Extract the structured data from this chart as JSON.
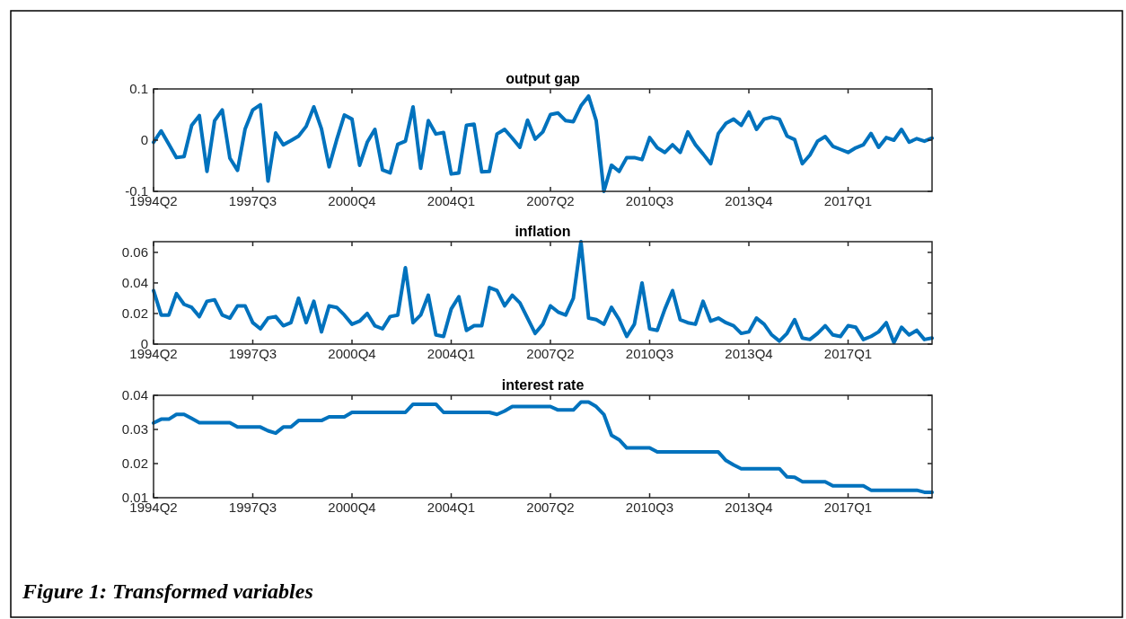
{
  "chart_data": [
    {
      "type": "line",
      "title": "output gap",
      "categories": [
        "1994Q2",
        null,
        null,
        null,
        null,
        null,
        null,
        null,
        null,
        null,
        null,
        null,
        null,
        "1997Q3",
        null,
        null,
        null,
        null,
        null,
        null,
        null,
        null,
        null,
        null,
        null,
        null,
        "2000Q4",
        null,
        null,
        null,
        null,
        null,
        null,
        null,
        null,
        null,
        null,
        null,
        null,
        "2004Q1",
        null,
        null,
        null,
        null,
        null,
        null,
        null,
        null,
        null,
        null,
        null,
        null,
        "2007Q2",
        null,
        null,
        null,
        null,
        null,
        null,
        null,
        null,
        null,
        null,
        null,
        null,
        "2010Q3",
        null,
        null,
        null,
        null,
        null,
        null,
        null,
        null,
        null,
        null,
        null,
        null,
        "2013Q4",
        null,
        null,
        null,
        null,
        null,
        null,
        null,
        null,
        null,
        null,
        null,
        null,
        "2017Q1",
        null,
        null,
        null,
        null,
        null,
        null,
        null,
        null,
        null,
        null,
        null
      ],
      "ylim": [
        -0.1,
        0.1
      ],
      "yticks": [
        -0.1,
        0,
        0.1
      ],
      "grid": false,
      "line_style": "solid",
      "series": [
        {
          "color": "#0072bd",
          "values": [
            -0.004,
            0.018,
            -0.008,
            -0.034,
            -0.032,
            0.029,
            0.048,
            -0.061,
            0.038,
            0.059,
            -0.035,
            -0.059,
            0.022,
            0.059,
            0.069,
            -0.08,
            0.014,
            -0.009,
            -0.001,
            0.008,
            0.027,
            0.065,
            0.022,
            -0.052,
            0.001,
            0.049,
            0.041,
            -0.049,
            -0.004,
            0.021,
            -0.058,
            -0.064,
            -0.008,
            -0.002,
            0.065,
            -0.055,
            0.038,
            0.012,
            0.015,
            -0.066,
            -0.064,
            0.029,
            0.031,
            -0.062,
            -0.061,
            0.012,
            0.021,
            0.004,
            -0.014,
            0.039,
            0.002,
            0.016,
            0.05,
            0.053,
            0.038,
            0.036,
            0.067,
            0.086,
            0.038,
            -0.1,
            -0.049,
            -0.061,
            -0.034,
            -0.034,
            -0.038,
            0.005,
            -0.015,
            -0.024,
            -0.009,
            -0.024,
            0.016,
            -0.009,
            -0.027,
            -0.046,
            0.013,
            0.033,
            0.041,
            0.029,
            0.055,
            0.021,
            0.041,
            0.045,
            0.041,
            0.008,
            0.001,
            -0.046,
            -0.029,
            -0.002,
            0.007,
            -0.012,
            -0.018,
            -0.024,
            -0.015,
            -0.009,
            0.013,
            -0.014,
            0.005,
            0.0,
            0.021,
            -0.004,
            0.003,
            -0.002,
            0.004
          ]
        }
      ]
    },
    {
      "type": "line",
      "title": "inflation",
      "categories": [
        "1994Q2",
        null,
        null,
        null,
        null,
        null,
        null,
        null,
        null,
        null,
        null,
        null,
        null,
        "1997Q3",
        null,
        null,
        null,
        null,
        null,
        null,
        null,
        null,
        null,
        null,
        null,
        null,
        "2000Q4",
        null,
        null,
        null,
        null,
        null,
        null,
        null,
        null,
        null,
        null,
        null,
        null,
        "2004Q1",
        null,
        null,
        null,
        null,
        null,
        null,
        null,
        null,
        null,
        null,
        null,
        null,
        "2007Q2",
        null,
        null,
        null,
        null,
        null,
        null,
        null,
        null,
        null,
        null,
        null,
        null,
        "2010Q3",
        null,
        null,
        null,
        null,
        null,
        null,
        null,
        null,
        null,
        null,
        null,
        null,
        "2013Q4",
        null,
        null,
        null,
        null,
        null,
        null,
        null,
        null,
        null,
        null,
        null,
        null,
        "2017Q1",
        null,
        null,
        null,
        null,
        null,
        null,
        null,
        null,
        null,
        null,
        null
      ],
      "ylim": [
        0,
        0.067
      ],
      "yticks": [
        0,
        0.02,
        0.04,
        0.06
      ],
      "grid": false,
      "line_style": "solid",
      "series": [
        {
          "color": "#0072bd",
          "values": [
            0.035,
            0.019,
            0.019,
            0.033,
            0.026,
            0.024,
            0.018,
            0.028,
            0.029,
            0.019,
            0.017,
            0.025,
            0.025,
            0.014,
            0.01,
            0.017,
            0.018,
            0.012,
            0.014,
            0.03,
            0.014,
            0.028,
            0.008,
            0.025,
            0.024,
            0.019,
            0.013,
            0.015,
            0.02,
            0.012,
            0.01,
            0.018,
            0.019,
            0.05,
            0.014,
            0.019,
            0.032,
            0.006,
            0.005,
            0.023,
            0.031,
            0.009,
            0.012,
            0.012,
            0.037,
            0.035,
            0.025,
            0.032,
            0.027,
            0.017,
            0.007,
            0.013,
            0.025,
            0.021,
            0.019,
            0.03,
            0.067,
            0.017,
            0.016,
            0.013,
            0.024,
            0.016,
            0.005,
            0.013,
            0.04,
            0.01,
            0.009,
            0.023,
            0.035,
            0.016,
            0.014,
            0.013,
            0.028,
            0.015,
            0.017,
            0.014,
            0.012,
            0.007,
            0.008,
            0.017,
            0.013,
            0.006,
            0.002,
            0.007,
            0.016,
            0.004,
            0.003,
            0.007,
            0.012,
            0.006,
            0.005,
            0.012,
            0.011,
            0.003,
            0.005,
            0.008,
            0.014,
            0.001,
            0.011,
            0.006,
            0.009,
            0.003,
            0.004
          ]
        }
      ]
    },
    {
      "type": "line",
      "title": "interest rate",
      "categories": [
        "1994Q2",
        null,
        null,
        null,
        null,
        null,
        null,
        null,
        null,
        null,
        null,
        null,
        null,
        "1997Q3",
        null,
        null,
        null,
        null,
        null,
        null,
        null,
        null,
        null,
        null,
        null,
        null,
        "2000Q4",
        null,
        null,
        null,
        null,
        null,
        null,
        null,
        null,
        null,
        null,
        null,
        null,
        "2004Q1",
        null,
        null,
        null,
        null,
        null,
        null,
        null,
        null,
        null,
        null,
        null,
        null,
        "2007Q2",
        null,
        null,
        null,
        null,
        null,
        null,
        null,
        null,
        null,
        null,
        null,
        null,
        "2010Q3",
        null,
        null,
        null,
        null,
        null,
        null,
        null,
        null,
        null,
        null,
        null,
        null,
        "2013Q4",
        null,
        null,
        null,
        null,
        null,
        null,
        null,
        null,
        null,
        null,
        null,
        null,
        "2017Q1",
        null,
        null,
        null,
        null,
        null,
        null,
        null,
        null,
        null,
        null,
        null
      ],
      "ylim": [
        0.01,
        0.04
      ],
      "yticks": [
        0.01,
        0.02,
        0.03,
        0.04
      ],
      "grid": false,
      "line_style": "solid",
      "annotations": [
        "Figure 1: Transformed variables"
      ],
      "series": [
        {
          "color": "#0072bd",
          "values": [
            0.0319,
            0.033,
            0.033,
            0.0344,
            0.0344,
            0.0332,
            0.032,
            0.032,
            0.032,
            0.032,
            0.032,
            0.0307,
            0.0307,
            0.0307,
            0.0307,
            0.0296,
            0.0289,
            0.0307,
            0.0307,
            0.0326,
            0.0326,
            0.0326,
            0.0326,
            0.0337,
            0.0337,
            0.0337,
            0.035,
            0.035,
            0.035,
            0.035,
            0.035,
            0.035,
            0.035,
            0.035,
            0.0374,
            0.0374,
            0.0374,
            0.0374,
            0.035,
            0.035,
            0.035,
            0.035,
            0.035,
            0.035,
            0.035,
            0.0344,
            0.0354,
            0.0367,
            0.0367,
            0.0367,
            0.0367,
            0.0367,
            0.0367,
            0.0357,
            0.0357,
            0.0357,
            0.038,
            0.038,
            0.0367,
            0.0344,
            0.0283,
            0.027,
            0.0246,
            0.0246,
            0.0246,
            0.0246,
            0.0234,
            0.0234,
            0.0234,
            0.0234,
            0.0234,
            0.0234,
            0.0234,
            0.0234,
            0.0234,
            0.0209,
            0.0196,
            0.0185,
            0.0185,
            0.0185,
            0.0185,
            0.0185,
            0.0185,
            0.0161,
            0.016,
            0.0147,
            0.0147,
            0.0147,
            0.0147,
            0.0135,
            0.0135,
            0.0135,
            0.0135,
            0.0135,
            0.0122,
            0.0122,
            0.0122,
            0.0122,
            0.0122,
            0.0122,
            0.0122,
            0.0116,
            0.0116
          ]
        }
      ]
    }
  ]
}
